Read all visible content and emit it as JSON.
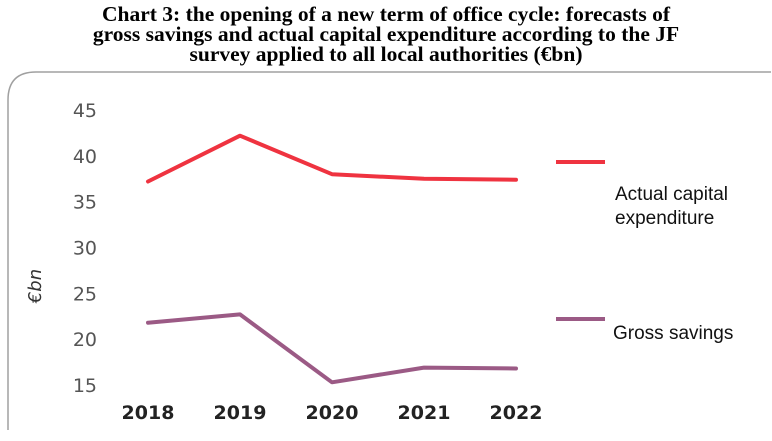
{
  "chart_data": {
    "type": "line",
    "title_lines": [
      "Chart 3: the opening of a new term of office cycle: forecasts of",
      "gross savings and actual capital expenditure according to the JF",
      "survey applied to all local authorities (€bn)"
    ],
    "ylabel": "€bn",
    "xlabel": "",
    "categories": [
      "2018",
      "2019",
      "2020",
      "2021",
      "2022"
    ],
    "ylim": [
      15,
      45
    ],
    "yticks": [
      "15",
      "20",
      "25",
      "30",
      "35",
      "40",
      "45"
    ],
    "grid": false,
    "legend_position": "right",
    "series": [
      {
        "name_lines": [
          "Actual capital",
          "expenditure"
        ],
        "values": [
          37.2,
          42.2,
          38.0,
          37.5,
          37.4
        ],
        "color": "#ef3340"
      },
      {
        "name_lines": [
          "Gross savings"
        ],
        "values": [
          21.8,
          22.7,
          15.3,
          16.9,
          16.8
        ],
        "color": "#9b5a85"
      }
    ]
  }
}
